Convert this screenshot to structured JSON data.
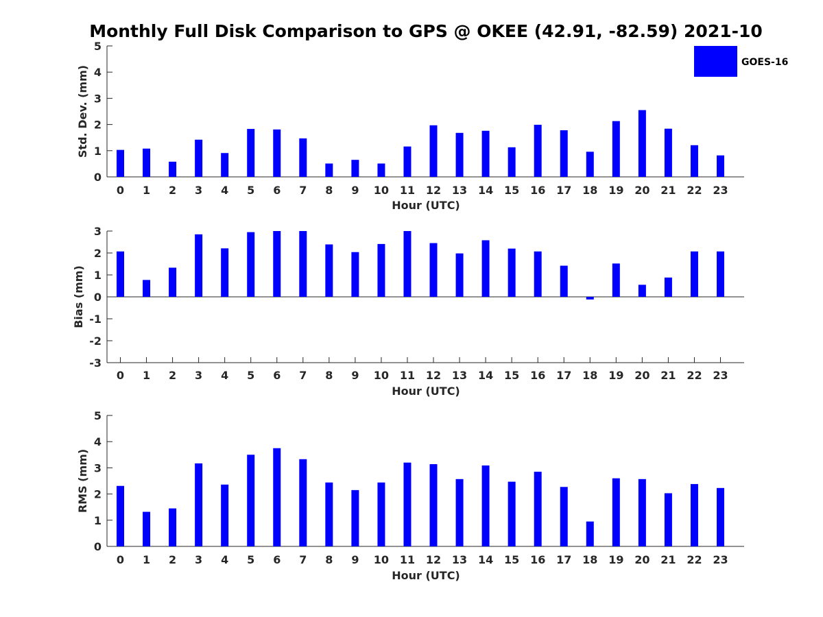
{
  "figure_title": "Monthly Full Disk Comparison to GPS @ OKEE (42.91, -82.59) 2021-10",
  "legend": {
    "label": "GOES-16",
    "position": "top-right"
  },
  "colors": {
    "bar": "#0000ff",
    "axis": "#262626",
    "text": "#262626"
  },
  "chart_data": [
    {
      "type": "bar",
      "xlabel": "Hour (UTC)",
      "ylabel": "Std. Dev. (mm)",
      "ylim": [
        0,
        5
      ],
      "yticks": [
        0,
        1,
        2,
        3,
        4,
        5
      ],
      "categories": [
        "0",
        "1",
        "2",
        "3",
        "4",
        "5",
        "6",
        "7",
        "8",
        "9",
        "10",
        "11",
        "12",
        "13",
        "14",
        "15",
        "16",
        "17",
        "18",
        "19",
        "20",
        "21",
        "22",
        "23"
      ],
      "series": [
        {
          "name": "GOES-16",
          "values": [
            1.03,
            1.08,
            0.58,
            1.42,
            0.91,
            1.83,
            1.81,
            1.47,
            0.51,
            0.65,
            0.51,
            1.16,
            1.97,
            1.68,
            1.76,
            1.13,
            1.99,
            1.78,
            0.96,
            2.13,
            2.55,
            1.84,
            1.21,
            0.82
          ]
        }
      ],
      "grid": false
    },
    {
      "type": "bar",
      "xlabel": "Hour (UTC)",
      "ylabel": "Bias (mm)",
      "ylim": [
        -3,
        3
      ],
      "yticks": [
        -3,
        -2,
        -1,
        0,
        1,
        2,
        3
      ],
      "categories": [
        "0",
        "1",
        "2",
        "3",
        "4",
        "5",
        "6",
        "7",
        "8",
        "9",
        "10",
        "11",
        "12",
        "13",
        "14",
        "15",
        "16",
        "17",
        "18",
        "19",
        "20",
        "21",
        "22",
        "23"
      ],
      "series": [
        {
          "name": "GOES-16",
          "values": [
            2.07,
            0.77,
            1.33,
            2.85,
            2.21,
            2.95,
            3.0,
            3.0,
            2.39,
            2.04,
            2.41,
            3.0,
            2.45,
            1.98,
            2.58,
            2.2,
            2.07,
            1.42,
            -0.12,
            1.52,
            0.55,
            0.88,
            2.07,
            2.07
          ]
        }
      ],
      "grid": false
    },
    {
      "type": "bar",
      "xlabel": "Hour (UTC)",
      "ylabel": "RMS (mm)",
      "ylim": [
        0,
        5
      ],
      "yticks": [
        0,
        1,
        2,
        3,
        4,
        5
      ],
      "categories": [
        "0",
        "1",
        "2",
        "3",
        "4",
        "5",
        "6",
        "7",
        "8",
        "9",
        "10",
        "11",
        "12",
        "13",
        "14",
        "15",
        "16",
        "17",
        "18",
        "19",
        "20",
        "21",
        "22",
        "23"
      ],
      "series": [
        {
          "name": "GOES-16",
          "values": [
            2.31,
            1.32,
            1.45,
            3.17,
            2.36,
            3.5,
            3.75,
            3.33,
            2.44,
            2.15,
            2.44,
            3.2,
            3.14,
            2.57,
            3.09,
            2.47,
            2.85,
            2.27,
            0.95,
            2.6,
            2.57,
            2.03,
            2.38,
            2.23
          ]
        }
      ],
      "grid": false
    }
  ]
}
